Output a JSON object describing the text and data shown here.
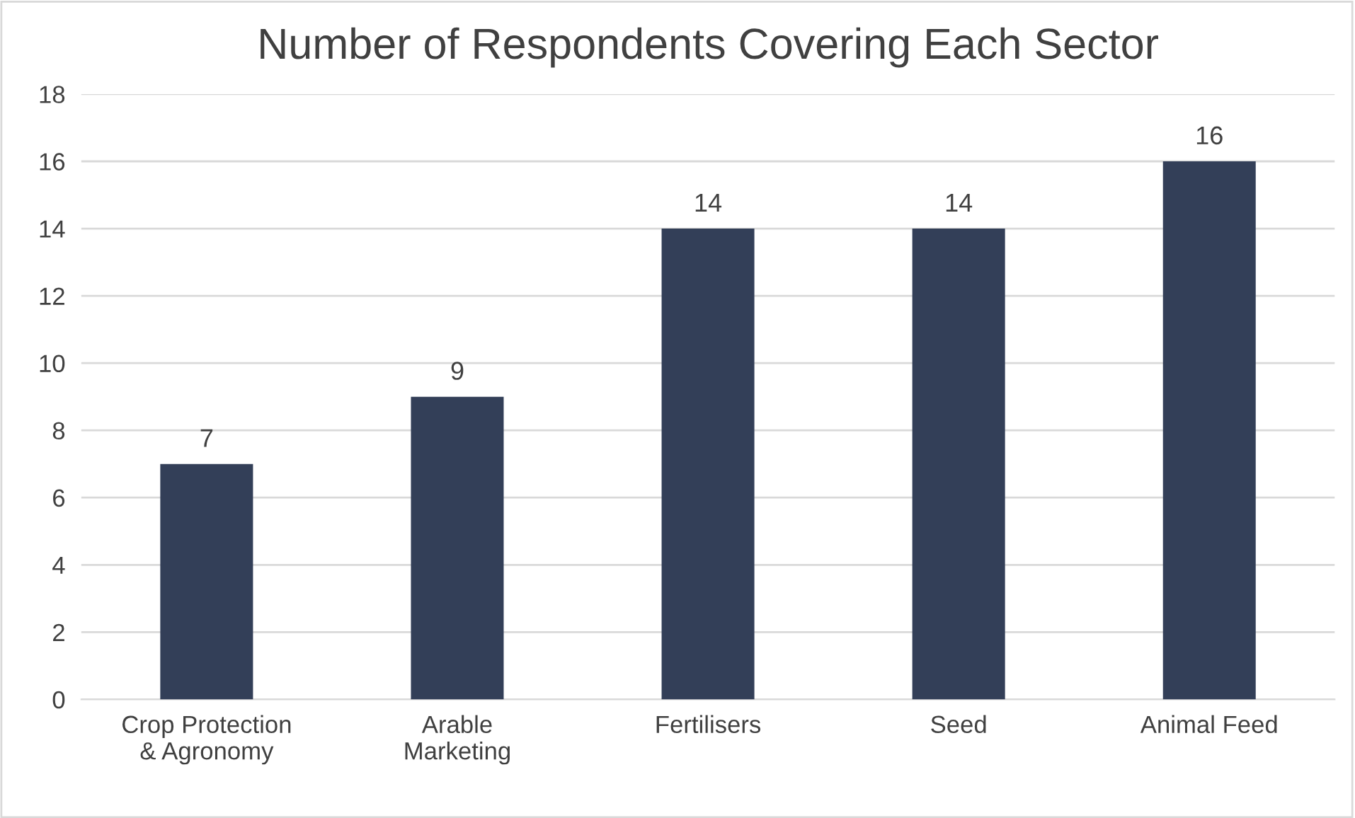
{
  "chart_data": {
    "type": "bar",
    "title": "Number of Respondents Covering Each Sector",
    "categories": [
      "Crop Protection\n& Agronomy",
      "Arable\nMarketing",
      "Fertilisers",
      "Seed",
      "Animal Feed"
    ],
    "values": [
      7,
      9,
      14,
      14,
      16
    ],
    "color": "#333f58",
    "ylim": [
      0,
      18
    ],
    "yticks": [
      0,
      2,
      4,
      6,
      8,
      10,
      12,
      14,
      16,
      18
    ],
    "grid": "y",
    "data_labels": true
  }
}
